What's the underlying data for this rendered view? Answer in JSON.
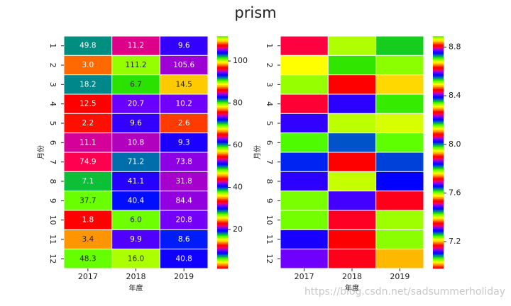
{
  "title": "prism",
  "watermark": "https://blog.csdn.net/sadsummerholiday",
  "chart_data": [
    {
      "type": "heatmap",
      "colormap": "prism",
      "grid_color": "#ffffff",
      "xlabel": "年度",
      "ylabel": "月份",
      "x_categories": [
        "2017",
        "2018",
        "2019"
      ],
      "y_categories": [
        "1",
        "2",
        "3",
        "4",
        "5",
        "6",
        "7",
        "8",
        "9",
        "10",
        "11",
        "12"
      ],
      "values": [
        [
          49.8,
          11.2,
          9.6
        ],
        [
          3.0,
          111.2,
          105.6
        ],
        [
          18.2,
          6.7,
          14.5
        ],
        [
          12.5,
          20.7,
          10.2
        ],
        [
          2.2,
          9.6,
          2.6
        ],
        [
          11.1,
          10.8,
          9.3
        ],
        [
          74.9,
          71.2,
          73.8
        ],
        [
          7.1,
          41.1,
          31.8
        ],
        [
          37.7,
          40.4,
          84.4
        ],
        [
          1.8,
          6.0,
          20.8
        ],
        [
          3.4,
          9.9,
          8.6
        ],
        [
          48.3,
          16.0,
          40.8
        ]
      ],
      "value_labels": [
        [
          "49.8",
          "11.2",
          "9.6"
        ],
        [
          "3.0",
          "111.2",
          "105.6"
        ],
        [
          "18.2",
          "6.7",
          "14.5"
        ],
        [
          "12.5",
          "20.7",
          "10.2"
        ],
        [
          "2.2",
          "9.6",
          "2.6"
        ],
        [
          "11.1",
          "10.8",
          "9.3"
        ],
        [
          "74.9",
          "71.2",
          "73.8"
        ],
        [
          "7.1",
          "41.1",
          "31.8"
        ],
        [
          "37.7",
          "40.4",
          "84.4"
        ],
        [
          "1.8",
          "6.0",
          "20.8"
        ],
        [
          "3.4",
          "9.9",
          "8.6"
        ],
        [
          "48.3",
          "16.0",
          "40.8"
        ]
      ],
      "zlim": [
        1.5,
        111.8
      ],
      "zticks": [
        20,
        40,
        60,
        80,
        100
      ]
    },
    {
      "type": "heatmap",
      "colormap": "prism",
      "grid_color": "#ffffff",
      "xlabel": "年度",
      "ylabel": "月份",
      "x_categories": [
        "2017",
        "2018",
        "2019"
      ],
      "y_categories": [
        "1",
        "2",
        "3",
        "4",
        "5",
        "6",
        "7",
        "8",
        "9",
        "10",
        "11",
        "12"
      ],
      "values": [
        [
          8.07,
          8.51,
          7.44
        ],
        [
          8.68,
          7.8,
          8.15
        ],
        [
          7.6,
          8.26,
          8.67
        ],
        [
          7.34,
          7.85,
          8.53
        ],
        [
          7.12,
          7.96,
          7.59
        ],
        [
          8.16,
          7.46,
          8.34
        ],
        [
          7.65,
          8.63,
          7.28
        ],
        [
          7.85,
          7.41,
          8.57
        ],
        [
          7.97,
          8.22,
          7.16
        ],
        [
          7.24,
          7.89,
          8.33
        ],
        [
          7.48,
          7.53,
          8.15
        ],
        [
          8.41,
          7.16,
          7.75
        ]
      ],
      "zlim": [
        6.98,
        8.89
      ],
      "zticks": [
        {
          "value": 7.2,
          "label": "7.2"
        },
        {
          "value": 7.6,
          "label": "7.6"
        },
        {
          "value": 8,
          "label": "8.0"
        },
        {
          "value": 8.4,
          "label": "8.4"
        },
        {
          "value": 8.8,
          "label": "8.8"
        }
      ]
    }
  ]
}
